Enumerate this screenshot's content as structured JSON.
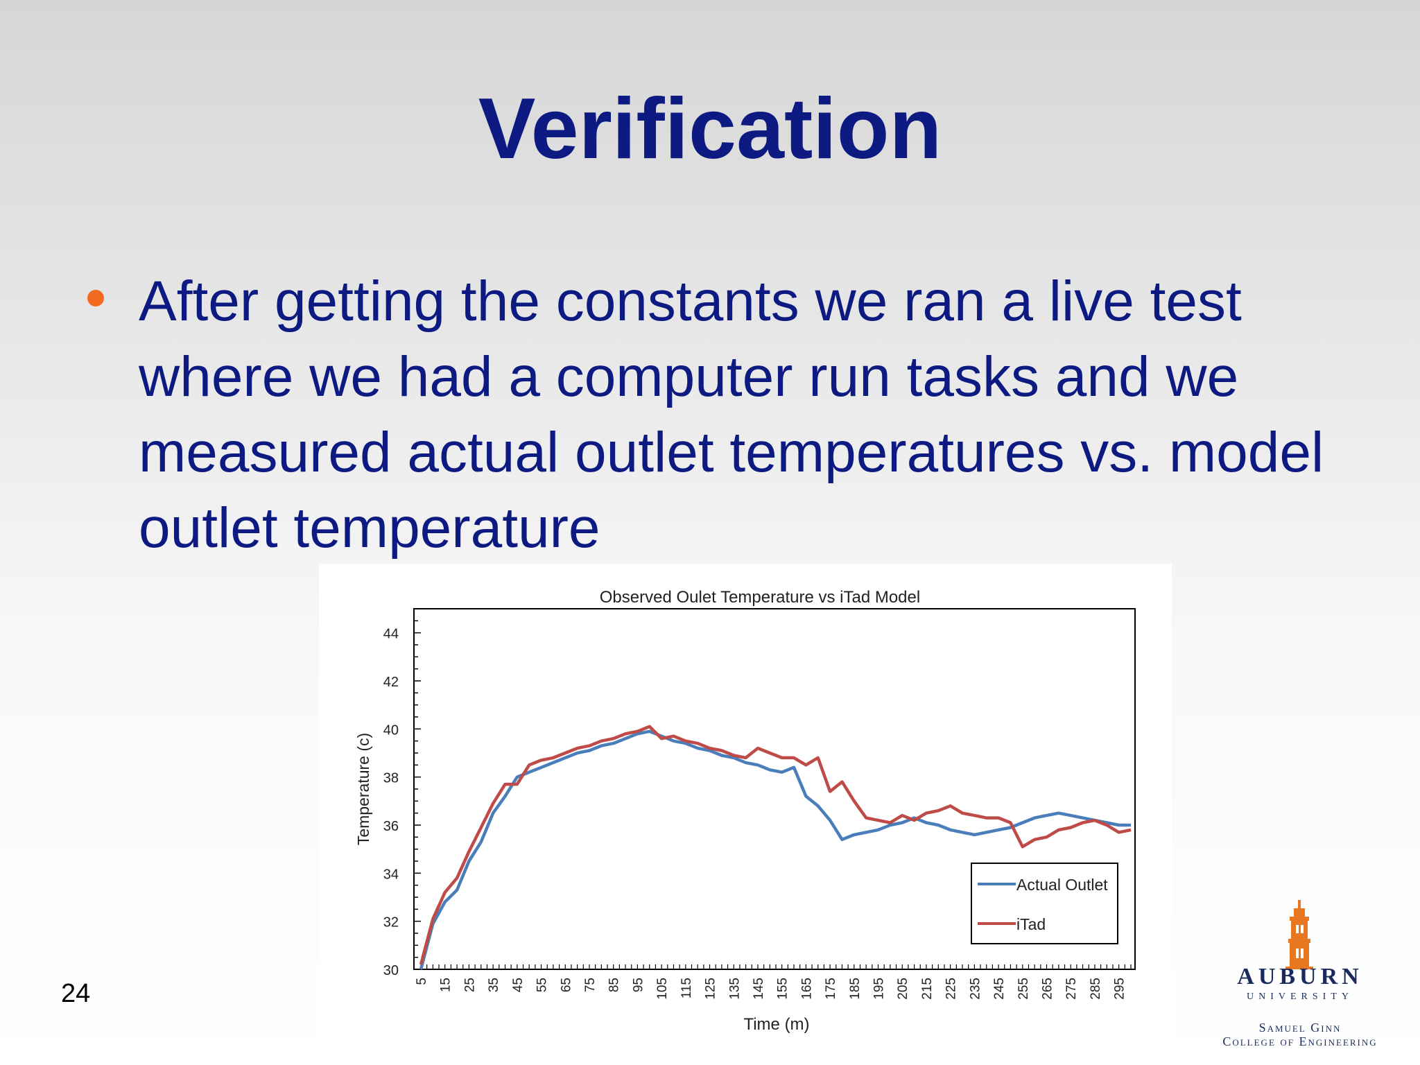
{
  "slide": {
    "title": "Verification",
    "bullet": "After getting the constants we ran a live test where we had a computer run tasks and we measured actual outlet temperatures vs. model outlet temperature",
    "page_number": "24"
  },
  "logo": {
    "name": "AUBURN",
    "subtitle": "UNIVERSITY",
    "college_line1": "Samuel Ginn",
    "college_line2": "College of Engineering"
  },
  "colors": {
    "title": "#0d1a82",
    "bullet": "#f26b21",
    "actual": "#4a7ebb",
    "itad": "#be4b48",
    "logo_orange": "#e87722"
  },
  "chart_data": {
    "type": "line",
    "title": "Observed  Oulet Temperature  vs iTad  Model",
    "xlabel": "Time (m)",
    "ylabel": "Temperature  (c)",
    "ylim": [
      30,
      45
    ],
    "yticks": [
      30,
      32,
      34,
      36,
      38,
      40,
      42,
      44
    ],
    "x": [
      5,
      10,
      15,
      20,
      25,
      30,
      35,
      40,
      45,
      50,
      55,
      60,
      65,
      70,
      75,
      80,
      85,
      90,
      95,
      100,
      105,
      110,
      115,
      120,
      125,
      130,
      135,
      140,
      145,
      150,
      155,
      160,
      165,
      170,
      175,
      180,
      185,
      190,
      195,
      200,
      205,
      210,
      215,
      220,
      225,
      230,
      235,
      240,
      245,
      250,
      255,
      260,
      265,
      270,
      275,
      280,
      285,
      290,
      295,
      300
    ],
    "xticks": [
      5,
      15,
      25,
      35,
      45,
      55,
      65,
      75,
      85,
      95,
      105,
      115,
      125,
      135,
      145,
      155,
      165,
      175,
      185,
      195,
      205,
      215,
      225,
      235,
      245,
      255,
      265,
      275,
      285,
      295
    ],
    "legend_position": "bottom-right",
    "grid": false,
    "series": [
      {
        "name": "Actual Outlet",
        "color": "#4a7ebb",
        "values": [
          30.0,
          31.9,
          32.8,
          33.3,
          34.5,
          35.3,
          36.5,
          37.2,
          38.0,
          38.2,
          38.4,
          38.6,
          38.8,
          39.0,
          39.1,
          39.3,
          39.4,
          39.6,
          39.8,
          39.9,
          39.7,
          39.5,
          39.4,
          39.2,
          39.1,
          38.9,
          38.8,
          38.6,
          38.5,
          38.3,
          38.2,
          38.4,
          37.2,
          36.8,
          36.2,
          35.4,
          35.6,
          35.7,
          35.8,
          36.0,
          36.1,
          36.3,
          36.1,
          36.0,
          35.8,
          35.7,
          35.6,
          35.7,
          35.8,
          35.9,
          36.1,
          36.3,
          36.4,
          36.5,
          36.4,
          36.3,
          36.2,
          36.1,
          36.0,
          36.0
        ]
      },
      {
        "name": "iTad",
        "color": "#be4b48",
        "values": [
          30.2,
          32.1,
          33.2,
          33.8,
          34.9,
          35.9,
          36.9,
          37.7,
          37.7,
          38.5,
          38.7,
          38.8,
          39.0,
          39.2,
          39.3,
          39.5,
          39.6,
          39.8,
          39.9,
          40.1,
          39.6,
          39.7,
          39.5,
          39.4,
          39.2,
          39.1,
          38.9,
          38.8,
          39.2,
          39.0,
          38.8,
          38.8,
          38.5,
          38.8,
          37.4,
          37.8,
          37.0,
          36.3,
          36.2,
          36.1,
          36.4,
          36.2,
          36.5,
          36.6,
          36.8,
          36.5,
          36.4,
          36.3,
          36.3,
          36.1,
          35.1,
          35.4,
          35.5,
          35.8,
          35.9,
          36.1,
          36.2,
          36.0,
          35.7,
          35.8
        ]
      }
    ]
  }
}
